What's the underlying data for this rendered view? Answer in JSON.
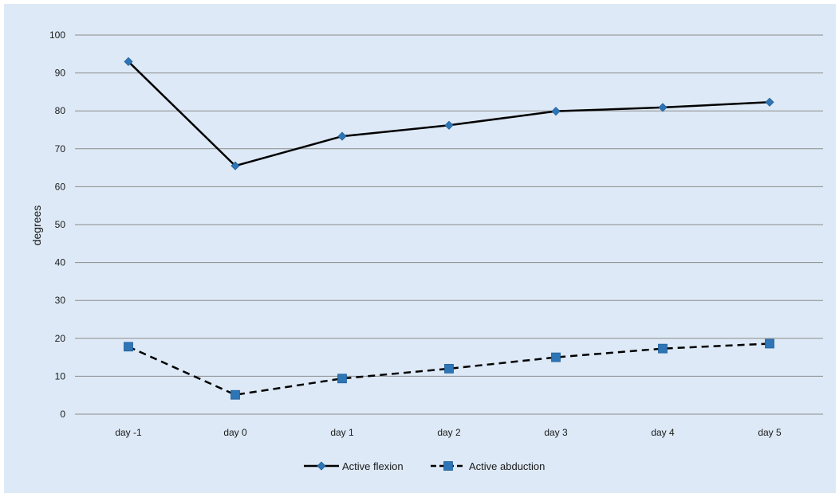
{
  "chart_data": {
    "type": "line",
    "title": "",
    "xlabel": "",
    "ylabel": "degrees",
    "ylim": [
      0,
      100
    ],
    "ytick_step": 10,
    "categories": [
      "day -1",
      "day 0",
      "day 1",
      "day 2",
      "day 3",
      "day 4",
      "day 5"
    ],
    "series": [
      {
        "name": "Active flexion",
        "values": [
          93,
          65.5,
          73.3,
          76.2,
          79.9,
          80.9,
          82.3
        ],
        "line_style": "solid",
        "marker": "diamond",
        "line_color": "#000000",
        "marker_color": "#2e75b6"
      },
      {
        "name": "Active abduction",
        "values": [
          17.8,
          5.1,
          9.4,
          12,
          15,
          17.3,
          18.6
        ],
        "line_style": "dashed",
        "marker": "square",
        "line_color": "#000000",
        "marker_color": "#2e75b6"
      }
    ],
    "grid": true,
    "legend_position": "bottom",
    "background_color": "#dde9f6",
    "gridline_color": "#8c8c8c"
  }
}
